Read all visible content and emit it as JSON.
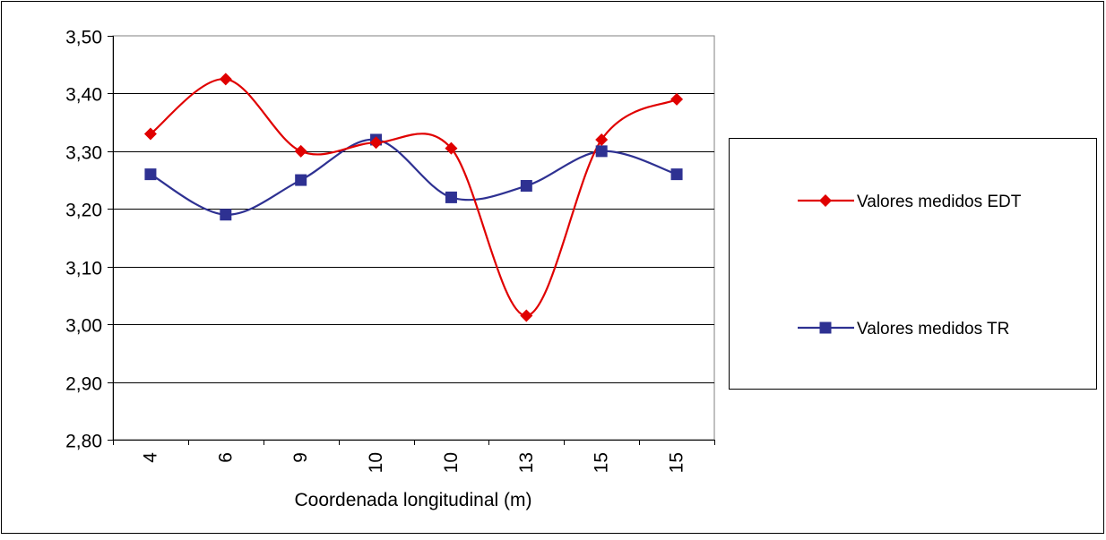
{
  "chart_data": {
    "type": "line",
    "smooth": true,
    "title": "",
    "xlabel": "Coordenada longitudinal (m)",
    "ylabel": "",
    "categories": [
      "4",
      "6",
      "9",
      "10",
      "10",
      "13",
      "15",
      "15"
    ],
    "ylim": [
      2.8,
      3.5
    ],
    "ytick_step": 0.1,
    "y_tick_labels": [
      "2,80",
      "2,90",
      "3,00",
      "3,10",
      "3,20",
      "3,30",
      "3,40",
      "3,50"
    ],
    "grid": "horizontal",
    "legend_position": "right",
    "series": [
      {
        "name": "Valores medidos EDT",
        "color": "#E00000",
        "marker": "diamond",
        "values": [
          3.33,
          3.425,
          3.3,
          3.315,
          3.305,
          3.015,
          3.32,
          3.39
        ]
      },
      {
        "name": "Valores medidos TR",
        "color": "#2E3192",
        "marker": "square",
        "values": [
          3.26,
          3.19,
          3.25,
          3.32,
          3.22,
          3.24,
          3.3,
          3.26
        ]
      }
    ]
  }
}
